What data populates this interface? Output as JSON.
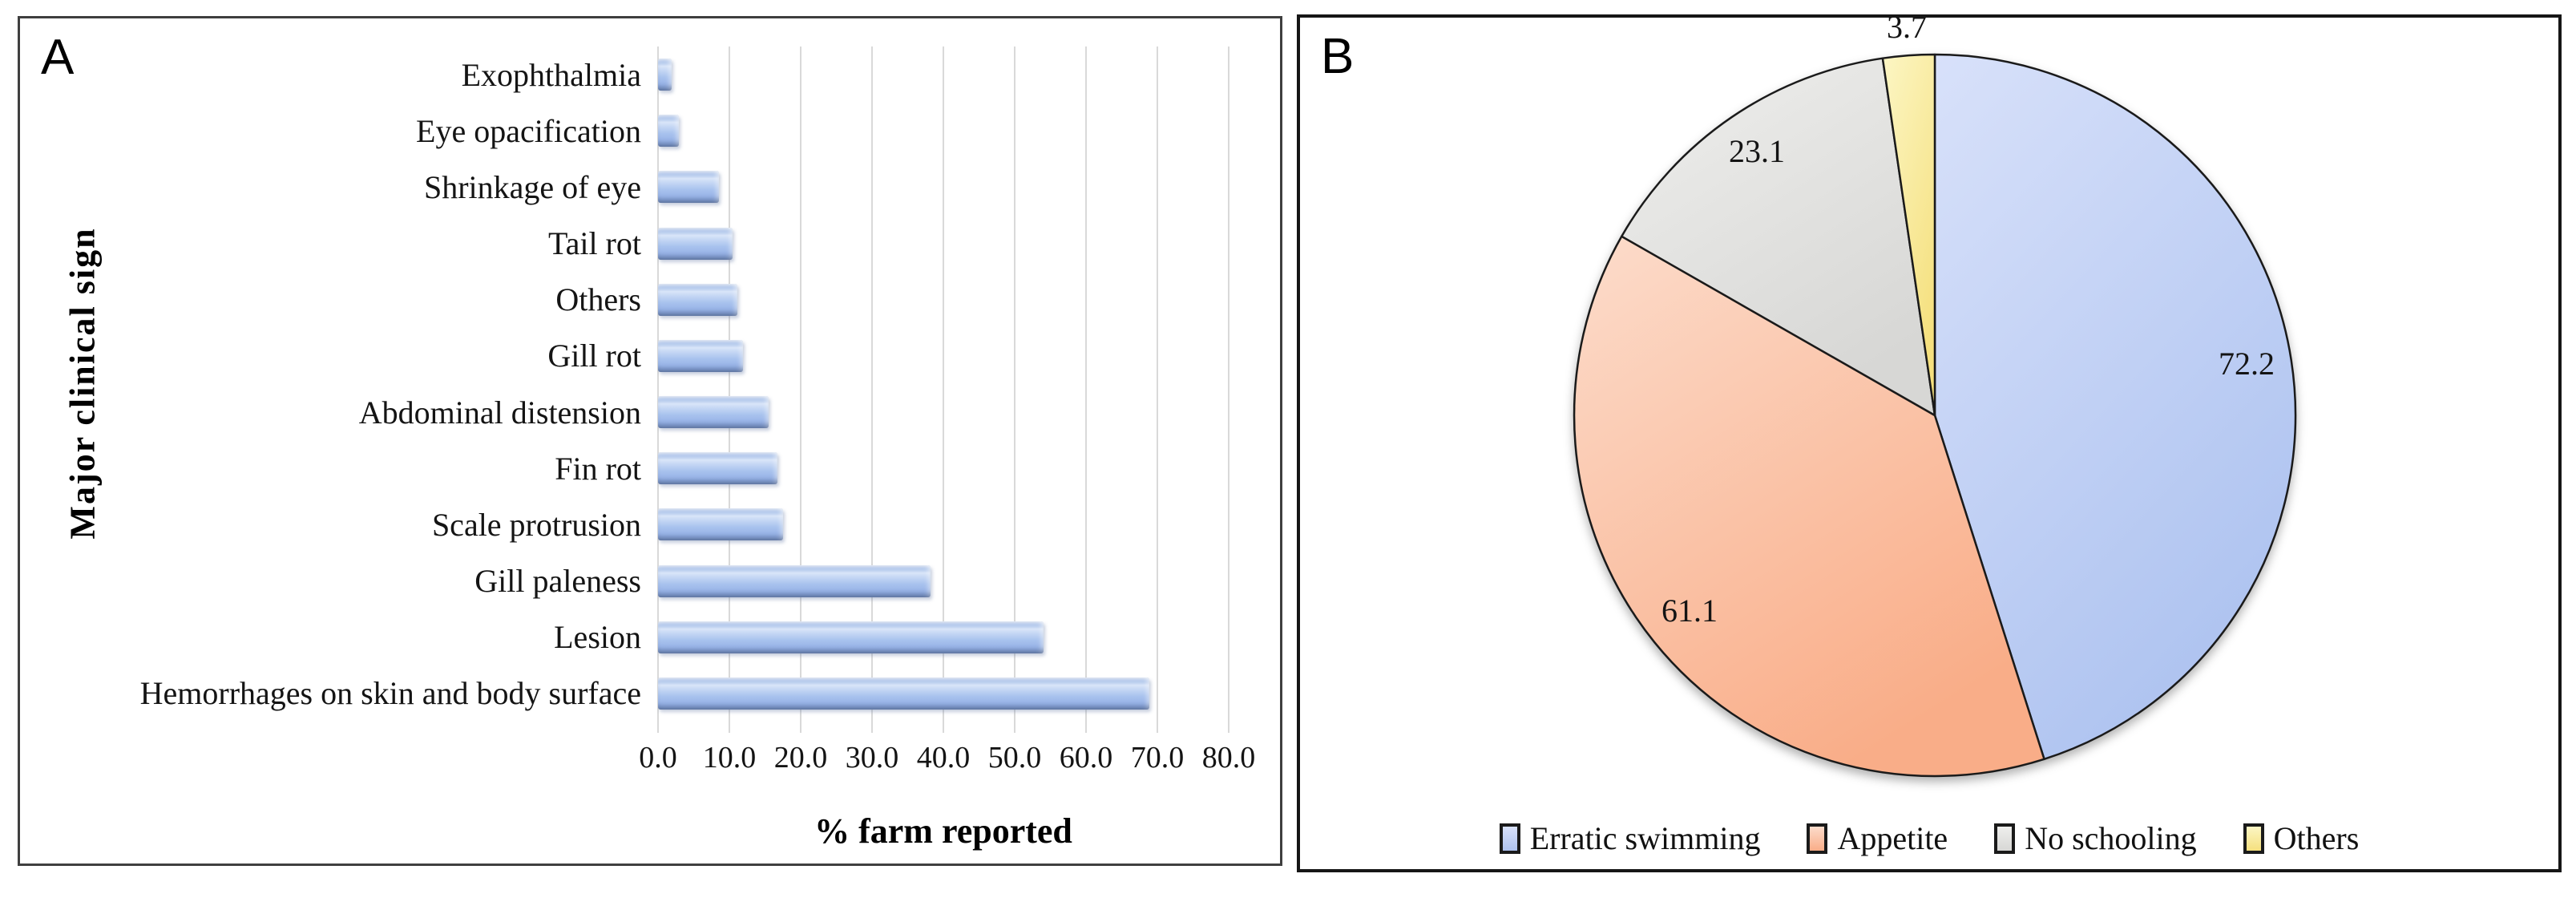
{
  "panel_a": {
    "label": "A",
    "y_axis_title": "Major clinical sign",
    "x_axis_title": "%  farm reported",
    "x_tick_labels": [
      "0.0",
      "10.0",
      "20.0",
      "30.0",
      "40.0",
      "50.0",
      "60.0",
      "70.0",
      "80.0"
    ]
  },
  "panel_b": {
    "label": "B",
    "legend_items": [
      "Erratic swimming",
      "Appetite",
      "No schooling",
      "Others"
    ]
  },
  "chart_data": [
    {
      "type": "bar",
      "orientation": "horizontal",
      "title": "",
      "xlabel": "%  farm reported",
      "ylabel": "Major clinical sign",
      "categories": [
        "Exophthalmia",
        "Eye opacification",
        "Shrinkage of eye",
        "Tail rot",
        "Others",
        "Gill rot",
        "Abdominal distension",
        "Fin rot",
        "Scale protrusion",
        "Gill paleness",
        "Lesion",
        "Hemorrhages on skin and body surface"
      ],
      "values": [
        1.9,
        2.9,
        8.5,
        10.4,
        11.1,
        11.9,
        15.5,
        16.7,
        17.5,
        38.2,
        54.0,
        68.9
      ],
      "xlim": [
        0,
        80
      ],
      "xticks": [
        0,
        10,
        20,
        30,
        40,
        50,
        60,
        70,
        80
      ],
      "grid": "vertical-gridlines-on",
      "bar_color": "#a9c3ee",
      "gridline_color": "#d9d9d9"
    },
    {
      "type": "pie",
      "title": "",
      "start": "12-o'clock, clockwise",
      "legend_position": "bottom",
      "total": 160.1,
      "slices": [
        {
          "label": "Erratic swimming",
          "value": 72.2,
          "data_label": "72.2",
          "color_from": "#d8e1fa",
          "color_to": "#aec3f0"
        },
        {
          "label": "Appetite",
          "value": 61.1,
          "data_label": "61.1",
          "color_from": "#fcdccb",
          "color_to": "#f9ad88"
        },
        {
          "label": "No schooling",
          "value": 23.1,
          "data_label": "23.1",
          "color_from": "#efefed",
          "color_to": "#d7d7d5"
        },
        {
          "label": "Others",
          "value": 3.7,
          "data_label": "3.7",
          "color_from": "#fcf6c4",
          "color_to": "#f5e07e"
        }
      ],
      "outline_color": "#1a1a1a"
    }
  ]
}
